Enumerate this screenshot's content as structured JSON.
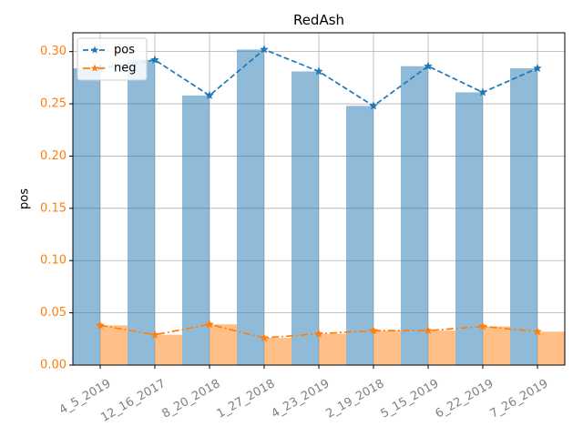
{
  "chart_data": {
    "type": "bar",
    "title": "RedAsh",
    "xlabel": "",
    "ylabel": "pos",
    "ylim": [
      0,
      0.318
    ],
    "yticks": [
      0.0,
      0.05,
      0.1,
      0.15,
      0.2,
      0.25,
      0.3
    ],
    "ytick_labels": [
      "0.00",
      "0.05",
      "0.10",
      "0.15",
      "0.20",
      "0.25",
      "0.30"
    ],
    "grid": true,
    "legend_position": "top-left",
    "categories": [
      "4_5_2019",
      "12_16_2017",
      "8_20_2018",
      "1_27_2018",
      "4_23_2019",
      "2_19_2018",
      "5_15_2019",
      "6_22_2019",
      "7_26_2019"
    ],
    "series": [
      {
        "name": "pos",
        "values": [
          0.284,
          0.292,
          0.258,
          0.302,
          0.281,
          0.248,
          0.286,
          0.261,
          0.284
        ],
        "color": "#1f77b4",
        "bar_color": "#1f77b4",
        "line_style": "dashed",
        "marker": "star"
      },
      {
        "name": "neg",
        "values": [
          0.038,
          0.029,
          0.039,
          0.026,
          0.03,
          0.033,
          0.033,
          0.037,
          0.032
        ],
        "color": "#ff7f0e",
        "bar_color": "#ff7f0e",
        "line_style": "dashdot",
        "marker": "star"
      }
    ],
    "tick_color_left": "#ff7f0e",
    "tick_color_bottom": "#808080"
  }
}
